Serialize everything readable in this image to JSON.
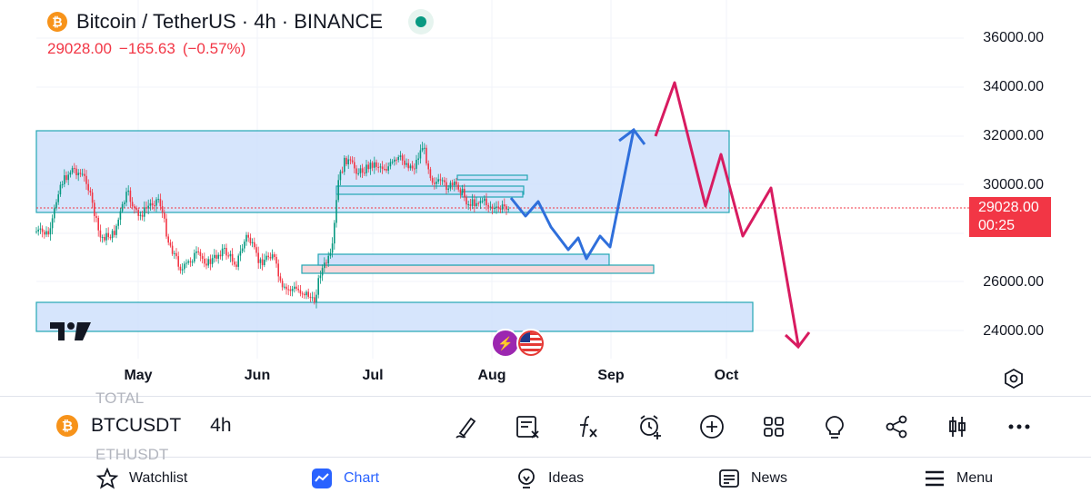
{
  "header": {
    "title": "Bitcoin / TetherUS · 4h · BINANCE",
    "coin_icon": "bitcoin-icon",
    "price": "29028.00",
    "change": "−165.63",
    "change_pct": "(−0.57%)"
  },
  "price_axis": {
    "labels": [
      "36000.00",
      "34000.00",
      "32000.00",
      "30000.00",
      "26000.00",
      "24000.00"
    ],
    "current_price": "29028.00",
    "countdown": "00:25"
  },
  "time_axis": {
    "labels": [
      "May",
      "Jun",
      "Jul",
      "Aug",
      "Sep",
      "Oct"
    ]
  },
  "watermark": "17",
  "toolbar": {
    "ghost_above": "TOTAL",
    "ghost_below": "ETHUSDT",
    "symbol": "BTCUSDT",
    "timeframe": "4h",
    "tools": [
      "draw-icon",
      "object-tree-icon",
      "indicators-fx-icon",
      "alert-add-icon",
      "add-icon",
      "layouts-icon",
      "ideas-bulb-icon",
      "share-icon",
      "candles-icon",
      "more-icon"
    ]
  },
  "nav": {
    "items": [
      {
        "label": "Watchlist",
        "icon": "star-icon"
      },
      {
        "label": "Chart",
        "icon": "chart-icon",
        "active": true
      },
      {
        "label": "Ideas",
        "icon": "bulb-icon"
      },
      {
        "label": "News",
        "icon": "news-icon"
      },
      {
        "label": "Menu",
        "icon": "menu-icon"
      }
    ]
  },
  "colors": {
    "up": "#089981",
    "down": "#f23645",
    "zone_fill": "#cfe0fb",
    "zone_stroke": "#22a6b3",
    "pink_zone": "#f8d7da",
    "projection_blue": "#2f6fdb",
    "projection_pink": "#d81b60",
    "accent": "#2962ff"
  }
}
